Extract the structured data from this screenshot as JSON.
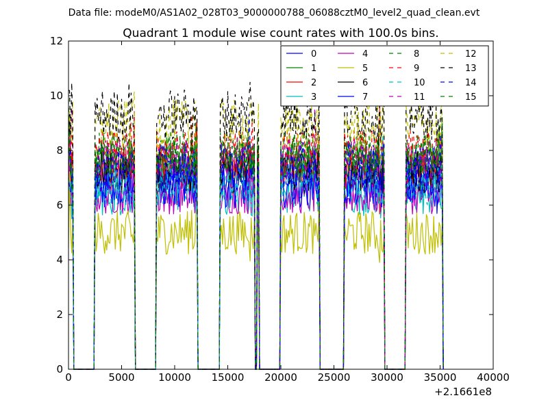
{
  "figure": {
    "suptitle": "Data file: modeM0/AS1A02_028T03_9000000788_06088cztM0_level2_quad_clean.evt",
    "offset_label": "+2.1661e8"
  },
  "chart_data": {
    "type": "line",
    "title": "Quadrant 1 module wise count rates with 100.0s bins.",
    "xlabel": "",
    "ylabel": "",
    "xlim": [
      0,
      40000
    ],
    "ylim": [
      0,
      12
    ],
    "x_ticks": [
      0,
      5000,
      10000,
      15000,
      20000,
      25000,
      30000,
      35000,
      40000
    ],
    "y_ticks": [
      0,
      2,
      4,
      6,
      8,
      10,
      12
    ],
    "x_offset": 216610000,
    "bin_size_s": 100.0,
    "legend_location": "upper right",
    "legend_columns": 4,
    "segments": [
      {
        "start": 0,
        "end": 400
      },
      {
        "start": 2500,
        "end": 6200
      },
      {
        "start": 8300,
        "end": 12100
      },
      {
        "start": 14300,
        "end": 17500
      },
      {
        "start": 17800,
        "end": 17900
      },
      {
        "start": 20000,
        "end": 23600
      },
      {
        "start": 26000,
        "end": 29700
      },
      {
        "start": 31800,
        "end": 35200
      }
    ],
    "series": [
      {
        "name": "0",
        "color": "#0000ff",
        "dash": "solid",
        "mean": 7.0,
        "spread": 0.6
      },
      {
        "name": "1",
        "color": "#008000",
        "dash": "solid",
        "mean": 7.6,
        "spread": 0.5
      },
      {
        "name": "2",
        "color": "#ff0000",
        "dash": "solid",
        "mean": 7.3,
        "spread": 0.5
      },
      {
        "name": "3",
        "color": "#00bfbf",
        "dash": "solid",
        "mean": 6.4,
        "spread": 0.5
      },
      {
        "name": "4",
        "color": "#bf00bf",
        "dash": "solid",
        "mean": 6.3,
        "spread": 0.4
      },
      {
        "name": "5",
        "color": "#bfbf00",
        "dash": "solid",
        "mean": 5.0,
        "spread": 0.5
      },
      {
        "name": "6",
        "color": "#000000",
        "dash": "solid",
        "mean": 7.2,
        "spread": 0.5
      },
      {
        "name": "7",
        "color": "#0000ff",
        "dash": "solid",
        "mean": 6.7,
        "spread": 0.5
      },
      {
        "name": "8",
        "color": "#008000",
        "dash": "dashed",
        "mean": 7.9,
        "spread": 0.5
      },
      {
        "name": "9",
        "color": "#ff0000",
        "dash": "dashed",
        "mean": 8.1,
        "spread": 0.4
      },
      {
        "name": "10",
        "color": "#00bfbf",
        "dash": "dashed",
        "mean": 6.8,
        "spread": 0.5
      },
      {
        "name": "11",
        "color": "#bf00bf",
        "dash": "dashed",
        "mean": 7.7,
        "spread": 0.5
      },
      {
        "name": "12",
        "color": "#bfbf00",
        "dash": "dashed",
        "mean": 8.9,
        "spread": 0.6
      },
      {
        "name": "13",
        "color": "#000000",
        "dash": "dashed",
        "mean": 9.3,
        "spread": 0.6
      },
      {
        "name": "14",
        "color": "#0000ff",
        "dash": "dashed",
        "mean": 7.5,
        "spread": 0.5
      },
      {
        "name": "15",
        "color": "#008000",
        "dash": "dashed",
        "mean": 7.8,
        "spread": 0.5
      }
    ]
  }
}
